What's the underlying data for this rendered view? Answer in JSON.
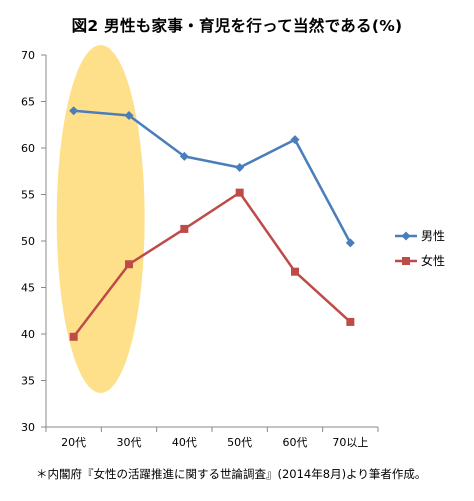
{
  "chart_data": {
    "type": "line",
    "title": "図2 男性も家事・育児を行って当然である(%)",
    "categories": [
      "20代",
      "30代",
      "40代",
      "50代",
      "60代",
      "70以上"
    ],
    "ylim": [
      30,
      70
    ],
    "yticks": [
      30,
      35,
      40,
      45,
      50,
      55,
      60,
      65,
      70
    ],
    "series": [
      {
        "name": "男性",
        "values": [
          64.0,
          63.5,
          59.1,
          57.9,
          60.9,
          49.8
        ],
        "color": "#4a7ebb",
        "marker": "diamond"
      },
      {
        "name": "女性",
        "values": [
          39.7,
          47.5,
          51.3,
          55.2,
          46.7,
          41.3
        ],
        "color": "#be4b48",
        "marker": "square"
      }
    ],
    "highlight": {
      "category": "20代",
      "color": "#ffe08a"
    },
    "legend_position": "right",
    "grid": false
  },
  "source_note": "＊内閣府『女性の活躍推進に関する世論調査』(2014年8月)より筆者作成。"
}
